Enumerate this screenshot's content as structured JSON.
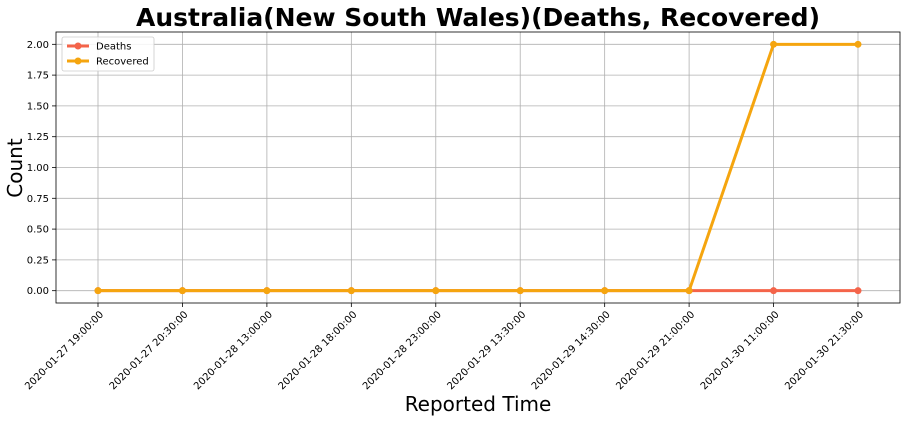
{
  "chart_data": {
    "type": "line",
    "title": "Australia(New South Wales)(Deaths, Recovered)",
    "xlabel": "Reported Time",
    "ylabel": "Count",
    "categories": [
      "2020-01-27 19:00:00",
      "2020-01-27 20:30:00",
      "2020-01-28 13:00:00",
      "2020-01-28 18:00:00",
      "2020-01-28 23:00:00",
      "2020-01-29 13:30:00",
      "2020-01-29 14:30:00",
      "2020-01-29 21:00:00",
      "2020-01-30 11:00:00",
      "2020-01-30 21:30:00"
    ],
    "series": [
      {
        "name": "Deaths",
        "color": "#f4644a",
        "values": [
          0,
          0,
          0,
          0,
          0,
          0,
          0,
          0,
          0,
          0
        ]
      },
      {
        "name": "Recovered",
        "color": "#f5a50f",
        "values": [
          0,
          0,
          0,
          0,
          0,
          0,
          0,
          0,
          2,
          2
        ]
      }
    ],
    "yticks": [
      "0.00",
      "0.25",
      "0.50",
      "0.75",
      "1.00",
      "1.25",
      "1.50",
      "1.75",
      "2.00"
    ],
    "ylim": [
      -0.1,
      2.1
    ],
    "grid": true,
    "legend": "upper-left"
  }
}
